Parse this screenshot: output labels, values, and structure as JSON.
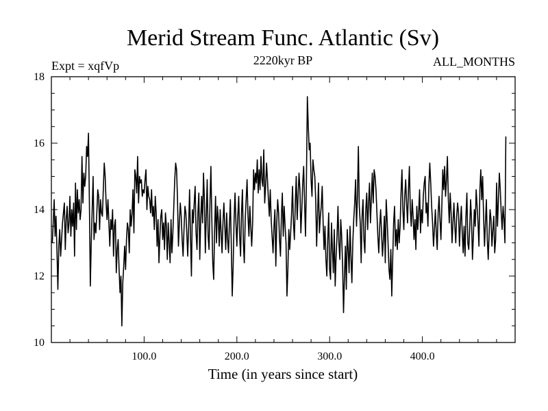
{
  "chart_data": {
    "type": "line",
    "title": "Merid Stream Func. Atlantic (Sv)",
    "subtitle_left": "Expt = xqfVp",
    "subtitle_center": "2220kyr BP",
    "subtitle_right": "ALL_MONTHS",
    "xlabel": "Time (in years since start)",
    "ylabel": "",
    "xlim": [
      0,
      500
    ],
    "ylim": [
      10,
      18
    ],
    "xticks": [
      {
        "value": 100,
        "label": "100.0"
      },
      {
        "value": 200,
        "label": "200.0"
      },
      {
        "value": 300,
        "label": "300.0"
      },
      {
        "value": 400,
        "label": "400.0"
      }
    ],
    "yticks": [
      {
        "value": 10,
        "label": "10"
      },
      {
        "value": 12,
        "label": "12"
      },
      {
        "value": 14,
        "label": "14"
      },
      {
        "value": 16,
        "label": "16"
      },
      {
        "value": 18,
        "label": "18"
      }
    ],
    "series": [
      {
        "name": "Merid Stream Func. Atlantic",
        "x_start": 1,
        "x_step": 1,
        "values": [
          13.0,
          13.6,
          14.3,
          13.2,
          13.8,
          12.8,
          11.6,
          12.9,
          13.4,
          12.6,
          13.1,
          13.6,
          13.9,
          14.2,
          12.8,
          13.7,
          14.1,
          13.3,
          13.6,
          14.4,
          13.2,
          14.0,
          13.5,
          14.2,
          12.6,
          14.8,
          13.4,
          14.6,
          13.9,
          14.3,
          13.7,
          14.0,
          15.6,
          14.2,
          15.1,
          14.7,
          15.0,
          15.9,
          15.6,
          16.3,
          14.2,
          11.7,
          13.0,
          14.0,
          15.0,
          13.1,
          13.6,
          13.3,
          13.9,
          14.6,
          14.4,
          13.4,
          14.3,
          13.9,
          13.8,
          14.6,
          15.4,
          15.0,
          14.2,
          13.7,
          14.3,
          13.6,
          12.9,
          13.7,
          13.4,
          14.0,
          12.6,
          13.5,
          13.7,
          12.1,
          12.8,
          13.1,
          12.2,
          11.5,
          12.0,
          10.5,
          11.8,
          12.3,
          12.9,
          12.2,
          13.1,
          13.6,
          13.4,
          12.7,
          14.0,
          13.5,
          13.9,
          14.6,
          13.3,
          15.2,
          15.0,
          14.5,
          15.6,
          14.2,
          15.0,
          14.8,
          14.9,
          14.4,
          14.6,
          14.5,
          14.9,
          15.2,
          14.0,
          14.7,
          14.4,
          14.3,
          13.9,
          14.6,
          13.8,
          14.1,
          13.4,
          14.4,
          13.9,
          12.9,
          13.7,
          12.4,
          13.2,
          13.8,
          14.0,
          13.1,
          13.6,
          12.8,
          13.9,
          13.5,
          12.5,
          13.6,
          13.0,
          12.4,
          13.7,
          12.7,
          13.3,
          14.1,
          14.9,
          15.4,
          15.2,
          14.3,
          12.9,
          13.6,
          14.2,
          13.8,
          13.1,
          12.6,
          13.4,
          14.1,
          13.9,
          13.3,
          12.6,
          13.5,
          14.6,
          13.2,
          12.0,
          14.0,
          13.6,
          14.2,
          14.7,
          13.3,
          12.8,
          13.9,
          14.5,
          12.5,
          13.7,
          14.4,
          13.6,
          15.1,
          14.3,
          12.7,
          13.8,
          14.9,
          13.2,
          12.8,
          14.2,
          15.3,
          13.7,
          12.4,
          11.9,
          13.4,
          14.4,
          13.0,
          14.1,
          13.7,
          12.9,
          14.0,
          13.3,
          12.7,
          13.6,
          14.2,
          13.5,
          12.8,
          13.9,
          13.1,
          12.7,
          13.6,
          14.3,
          12.9,
          11.4,
          12.3,
          13.7,
          14.5,
          13.6,
          12.9,
          13.8,
          14.4,
          13.2,
          12.6,
          13.9,
          14.6,
          13.0,
          12.4,
          13.7,
          14.3,
          14.9,
          13.8,
          13.2,
          14.1,
          13.5,
          12.9,
          13.6,
          15.2,
          14.6,
          15.1,
          14.8,
          15.5,
          14.5,
          15.2,
          14.6,
          15.6,
          14.9,
          14.7,
          15.8,
          14.2,
          14.7,
          15.4,
          14.9,
          14.3,
          13.8,
          14.6,
          13.7,
          13.2,
          12.7,
          13.5,
          14.0,
          12.3,
          13.6,
          14.3,
          13.9,
          13.1,
          12.6,
          13.8,
          14.5,
          13.2,
          14.1,
          13.5,
          13.0,
          11.4,
          12.2,
          13.4,
          12.8,
          13.3,
          13.9,
          14.7,
          13.6,
          13.1,
          14.2,
          15.0,
          13.7,
          14.4,
          15.1,
          14.6,
          13.3,
          14.0,
          14.8,
          15.3,
          14.2,
          13.2,
          14.9,
          17.4,
          16.5,
          15.8,
          16.0,
          14.9,
          14.4,
          15.5,
          15.2,
          15.0,
          14.3,
          12.9,
          13.9,
          14.8,
          13.3,
          13.8,
          14.1,
          14.7,
          13.6,
          12.8,
          13.5,
          12.5,
          12.0,
          13.1,
          13.9,
          12.2,
          11.9,
          13.6,
          12.8,
          12.1,
          13.4,
          11.7,
          12.6,
          13.2,
          14.1,
          13.0,
          12.5,
          13.7,
          13.2,
          12.3,
          10.9,
          12.0,
          12.9,
          11.6,
          13.4,
          12.8,
          12.1,
          13.5,
          12.6,
          11.8,
          13.0,
          13.7,
          14.2,
          14.9,
          13.5,
          14.4,
          15.9,
          14.1,
          13.6,
          12.4,
          13.8,
          14.3,
          13.1,
          12.7,
          14.0,
          14.5,
          13.4,
          14.2,
          14.8,
          13.6,
          14.3,
          15.1,
          14.2,
          15.2,
          15.0,
          14.6,
          13.9,
          13.2,
          12.7,
          13.5,
          14.0,
          13.3,
          12.6,
          13.1,
          13.8,
          12.4,
          14.3,
          13.7,
          13.0,
          12.2,
          11.9,
          12.8,
          11.4,
          12.5,
          13.6,
          14.1,
          12.9,
          13.4,
          12.8,
          13.7,
          13.0,
          13.5,
          14.5,
          15.2,
          14.0,
          13.4,
          14.4,
          14.9,
          14.2,
          13.6,
          14.6,
          15.3,
          14.0,
          13.5,
          14.3,
          13.8,
          13.1,
          13.7,
          12.8,
          14.1,
          13.4,
          13.9,
          14.6,
          13.3,
          14.0,
          13.6,
          14.4,
          14.8,
          15.0,
          13.9,
          14.2,
          13.5,
          14.7,
          15.4,
          14.8,
          14.1,
          13.6,
          12.9,
          13.4,
          14.0,
          13.3,
          12.8,
          13.9,
          14.4,
          13.7,
          13.1,
          14.1,
          15.2,
          14.6,
          15.3,
          14.4,
          14.9,
          15.6,
          14.3,
          13.6,
          14.5,
          13.9,
          13.0,
          13.6,
          14.2,
          13.5,
          13.0,
          13.8,
          14.2,
          13.9,
          12.9,
          13.6,
          14.1,
          13.3,
          12.7,
          13.5,
          12.6,
          13.8,
          14.5,
          13.0,
          12.8,
          13.4,
          14.3,
          13.7,
          12.5,
          13.2,
          14.0,
          13.5,
          14.6,
          14.1,
          13.6,
          12.9,
          14.6,
          15.2,
          14.3,
          15.0,
          13.8,
          12.9,
          13.6,
          14.3,
          13.1,
          12.5,
          13.3,
          14.0,
          13.7,
          12.9,
          13.4,
          13.8,
          12.7,
          13.1,
          14.8,
          13.5,
          14.3,
          15.1,
          14.6,
          13.9,
          13.4,
          14.1,
          13.7,
          13.0,
          16.2
        ]
      }
    ]
  }
}
